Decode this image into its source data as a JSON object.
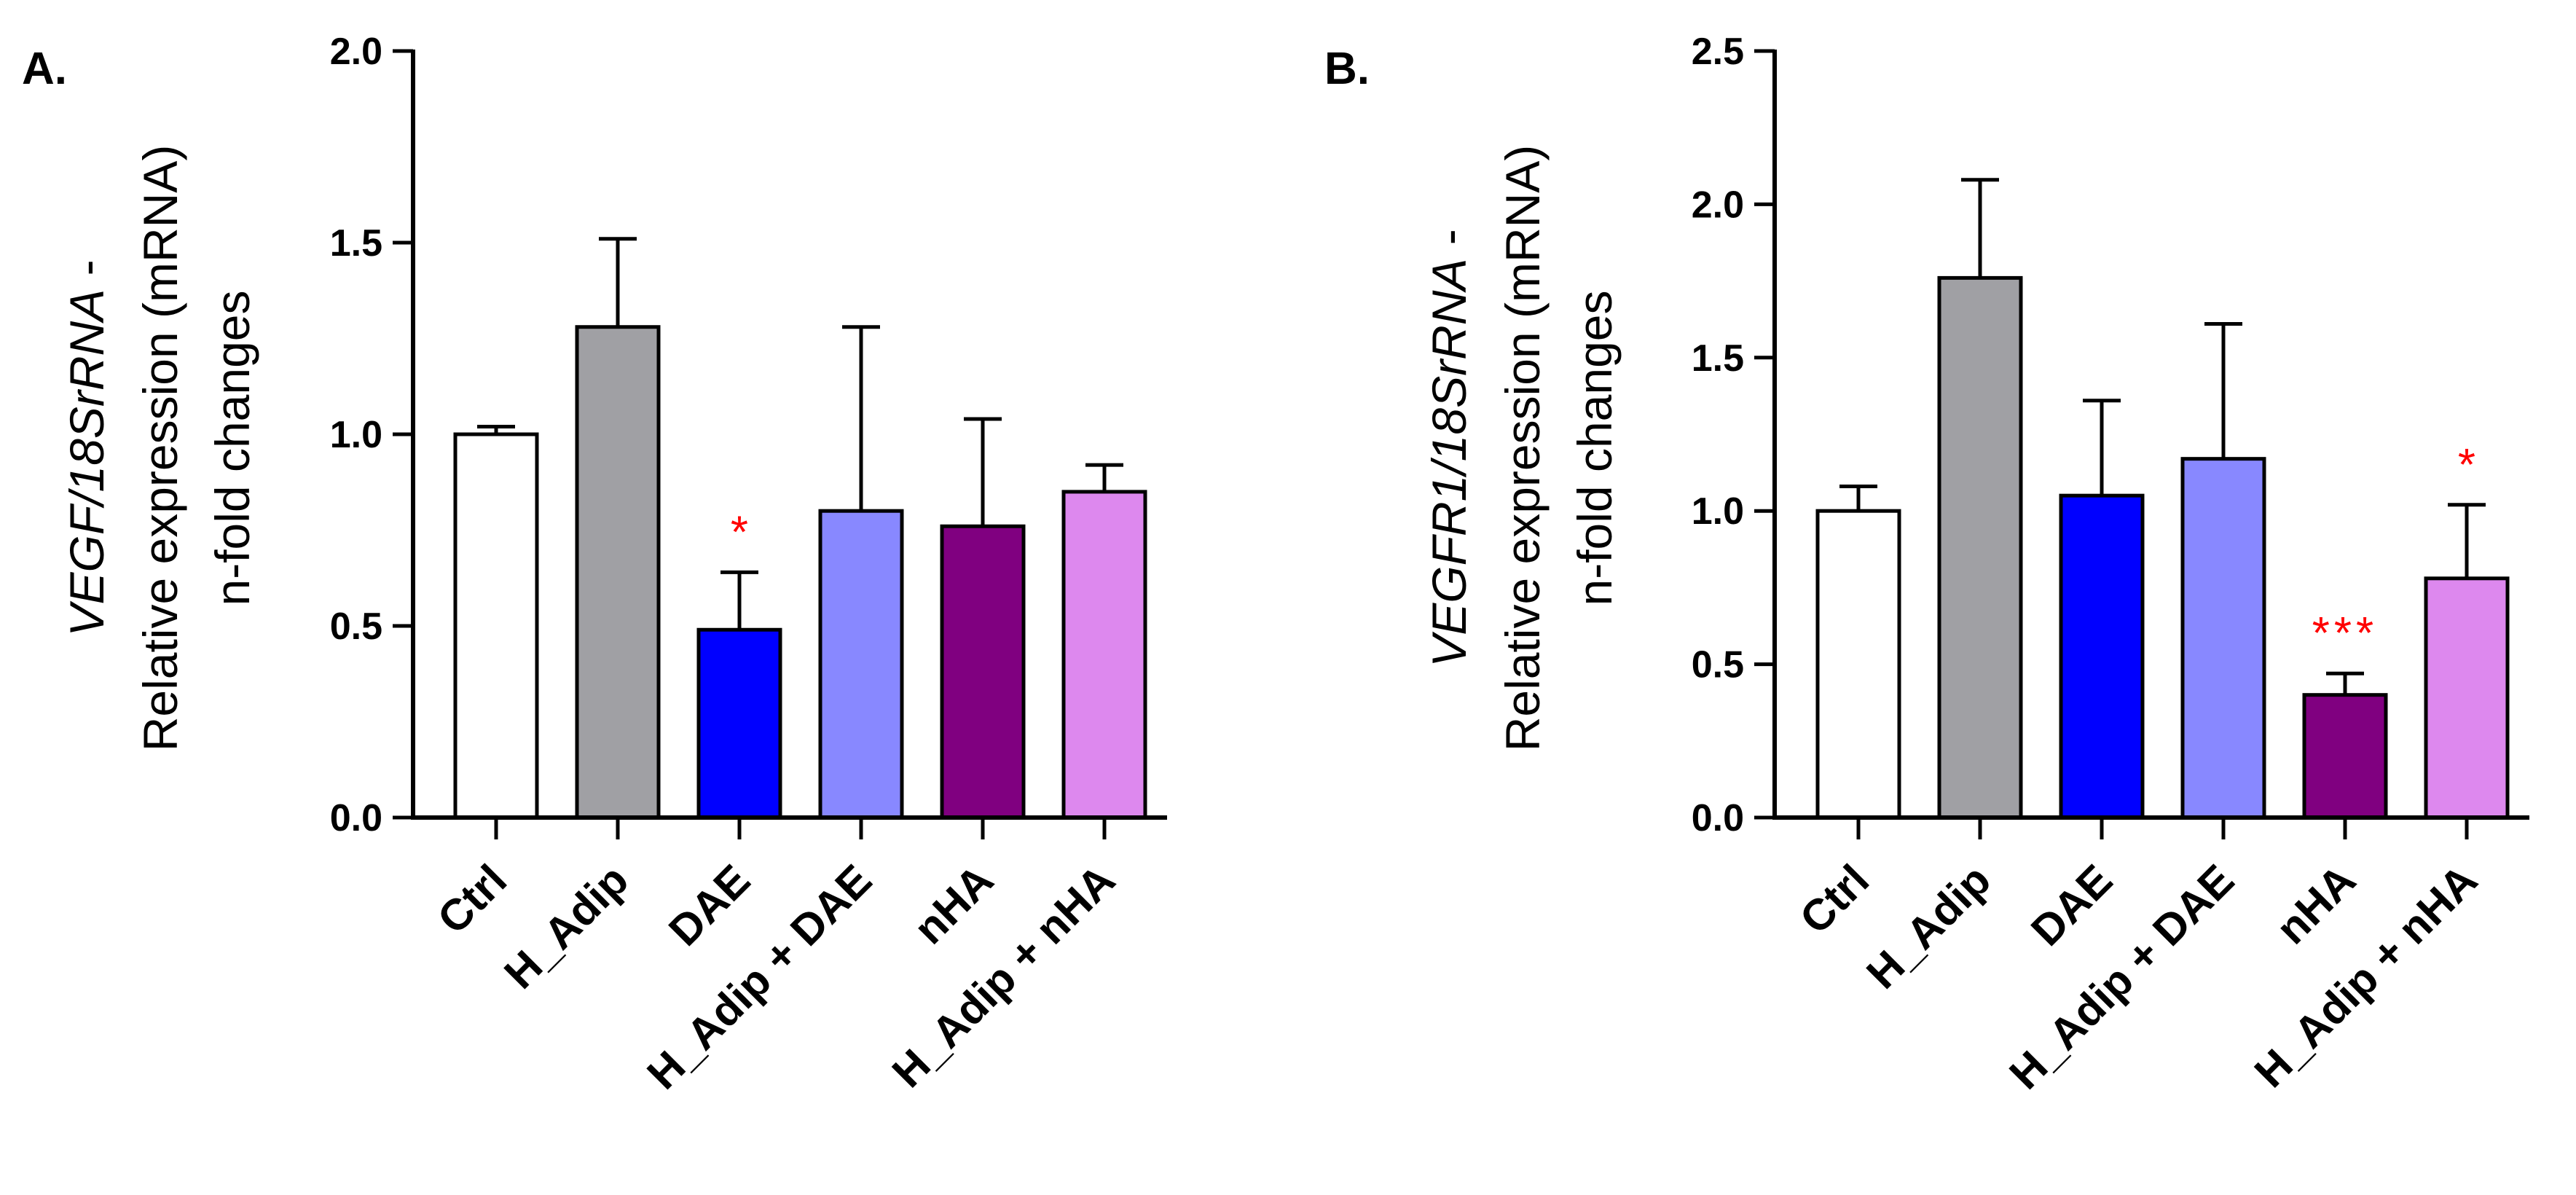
{
  "chart_data": [
    {
      "type": "bar",
      "panel_label": "A.",
      "ylabel_line1_italic": "VEGF/18SrRNA",
      "ylabel_line1_rest": " -",
      "ylabel_line2": "Relative expression (mRNA)",
      "ylabel_line3": "n-fold changes",
      "ylim": [
        0,
        2.0
      ],
      "yticks": [
        0.0,
        0.5,
        1.0,
        1.5,
        2.0
      ],
      "ytick_labels": [
        "0.0",
        "0.5",
        "1.0",
        "1.5",
        "2.0"
      ],
      "categories": [
        "Ctrl",
        "H_Adip",
        "DAE",
        "H_Adip + DAE",
        "nHA",
        "H_Adip + nHA"
      ],
      "values": [
        1.0,
        1.28,
        0.49,
        0.8,
        0.76,
        0.85
      ],
      "errors": [
        0.02,
        0.23,
        0.15,
        0.48,
        0.28,
        0.07
      ],
      "significance": [
        "",
        "",
        "*",
        "",
        "",
        ""
      ],
      "colors": [
        "#ffffff",
        "#a0a0a4",
        "#0000ff",
        "#8888ff",
        "#800080",
        "#dd88ee"
      ]
    },
    {
      "type": "bar",
      "panel_label": "B.",
      "ylabel_line1_italic": "VEGFR1/18SrRNA",
      "ylabel_line1_rest": " -",
      "ylabel_line2": "Relative expression (mRNA)",
      "ylabel_line3": "n-fold changes",
      "ylim": [
        0,
        2.5
      ],
      "yticks": [
        0.0,
        0.5,
        1.0,
        1.5,
        2.0,
        2.5
      ],
      "ytick_labels": [
        "0.0",
        "0.5",
        "1.0",
        "1.5",
        "2.0",
        "2.5"
      ],
      "categories": [
        "Ctrl",
        "H_Adip",
        "DAE",
        "H_Adip + DAE",
        "nHA",
        "H_Adip + nHA"
      ],
      "values": [
        1.0,
        1.76,
        1.05,
        1.17,
        0.4,
        0.78
      ],
      "errors": [
        0.08,
        0.32,
        0.31,
        0.44,
        0.07,
        0.24
      ],
      "significance": [
        "",
        "",
        "",
        "",
        "***",
        "*"
      ],
      "colors": [
        "#ffffff",
        "#a0a0a4",
        "#0000ff",
        "#8888ff",
        "#800080",
        "#dd88ee"
      ]
    }
  ]
}
